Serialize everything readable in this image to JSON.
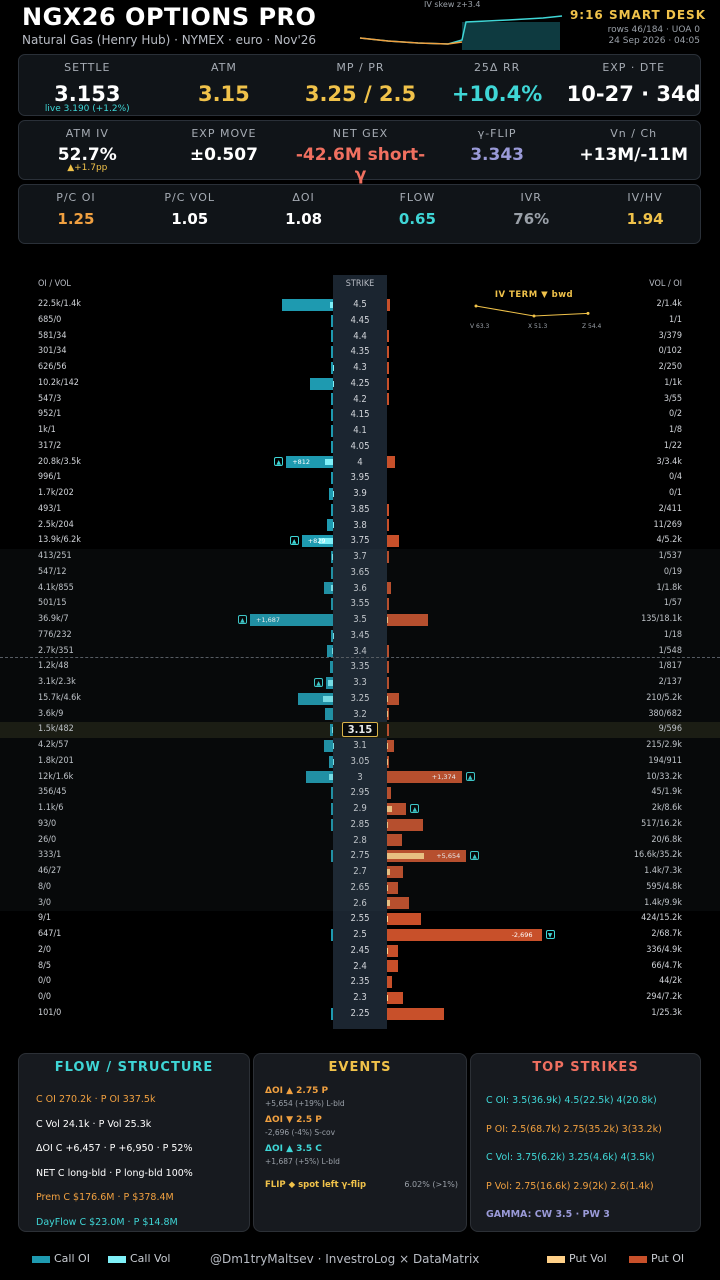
{
  "header": {
    "title": "NGX26 OPTIONS PRO",
    "subtitle": "Natural Gas (Henry Hub) · NYMEX · euro · Nov'26",
    "desk": "9:16 SMART DESK",
    "rows": "rows 46/184 · UOA 0",
    "datetime": "24 Sep 2026 · 04:05",
    "skew_label": "IV skew  z+3.4"
  },
  "kpi1": [
    {
      "label": "SETTLE",
      "value": "3.153",
      "sub": "live 3.190 (+1.2%)",
      "color": "#ffffff"
    },
    {
      "label": "ATM",
      "value": "3.15",
      "color": "#f0c24a"
    },
    {
      "label": "MP / PR",
      "value": "3.25 / 2.5",
      "color": "#f0c24a"
    },
    {
      "label": "25Δ RR",
      "value": "+10.4%",
      "color": "#3fd6d6"
    },
    {
      "label": "EXP · DTE",
      "value": "10-27 · 34d",
      "color": "#ffffff"
    }
  ],
  "kpi2": [
    {
      "label": "ATM IV",
      "value": "52.7%",
      "sub": "▲+1.7pp",
      "color": "#ffffff"
    },
    {
      "label": "EXP MOVE",
      "value": "±0.507",
      "color": "#ffffff"
    },
    {
      "label": "NET GEX",
      "value": "-42.6M short-γ",
      "color": "#f07060"
    },
    {
      "label": "γ-FLIP",
      "value": "3.343",
      "color": "#9a9ad8"
    },
    {
      "label": "Vn / Ch",
      "value": "+13M/-11M",
      "color": "#ffffff"
    }
  ],
  "kpi3": [
    {
      "label": "P/C OI",
      "value": "1.25",
      "color": "#f0a040"
    },
    {
      "label": "P/C VOL",
      "value": "1.05",
      "color": "#ffffff"
    },
    {
      "label": "ΔOI",
      "value": "1.08",
      "color": "#ffffff"
    },
    {
      "label": "FLOW",
      "value": "0.65",
      "color": "#3fd6d6"
    },
    {
      "label": "IVR",
      "value": "76%",
      "color": "#9aa0a8"
    },
    {
      "label": "IV/HV",
      "value": "1.94",
      "color": "#f0c24a"
    }
  ],
  "grid": {
    "left_header": "OI / VOL",
    "strike_header": "STRIKE",
    "right_header": "VOL / OI",
    "atm_strike": "3.15",
    "rows": [
      {
        "s": "4.5",
        "l": "22.5k/1.4k",
        "r": "2/1.4k",
        "coi": 22.5,
        "cvol": 1.4,
        "poi": 1.4,
        "pvol": 0
      },
      {
        "s": "4.45",
        "l": "685/0",
        "r": "1/1",
        "coi": 0.7,
        "cvol": 0,
        "poi": 0,
        "pvol": 0
      },
      {
        "s": "4.4",
        "l": "581/34",
        "r": "3/379",
        "coi": 0.6,
        "cvol": 0,
        "poi": 0.4,
        "pvol": 0
      },
      {
        "s": "4.35",
        "l": "301/34",
        "r": "0/102",
        "coi": 0.3,
        "cvol": 0,
        "poi": 0.1,
        "pvol": 0
      },
      {
        "s": "4.3",
        "l": "626/56",
        "r": "2/250",
        "coi": 0.6,
        "cvol": 0.1,
        "poi": 0.3,
        "pvol": 0
      },
      {
        "s": "4.25",
        "l": "10.2k/142",
        "r": "1/1k",
        "coi": 10.2,
        "cvol": 0.1,
        "poi": 1,
        "pvol": 0
      },
      {
        "s": "4.2",
        "l": "547/3",
        "r": "3/55",
        "coi": 0.5,
        "cvol": 0,
        "poi": 0.1,
        "pvol": 0
      },
      {
        "s": "4.15",
        "l": "952/1",
        "r": "0/2",
        "coi": 1,
        "cvol": 0,
        "poi": 0,
        "pvol": 0
      },
      {
        "s": "4.1",
        "l": "1k/1",
        "r": "1/8",
        "coi": 1,
        "cvol": 0,
        "poi": 0,
        "pvol": 0
      },
      {
        "s": "4.05",
        "l": "317/2",
        "r": "1/22",
        "coi": 0.3,
        "cvol": 0,
        "poi": 0,
        "pvol": 0
      },
      {
        "s": "4",
        "l": "20.8k/3.5k",
        "r": "3/3.4k",
        "coi": 20.8,
        "cvol": 3.5,
        "poi": 3.4,
        "pvol": 0,
        "tag": "+812",
        "tagside": "L",
        "arrow": "▲"
      },
      {
        "s": "3.95",
        "l": "996/1",
        "r": "0/4",
        "coi": 1,
        "cvol": 0,
        "poi": 0,
        "pvol": 0
      },
      {
        "s": "3.9",
        "l": "1.7k/202",
        "r": "0/1",
        "coi": 1.7,
        "cvol": 0.2,
        "poi": 0,
        "pvol": 0
      },
      {
        "s": "3.85",
        "l": "493/1",
        "r": "2/411",
        "coi": 0.5,
        "cvol": 0,
        "poi": 0.4,
        "pvol": 0
      },
      {
        "s": "3.8",
        "l": "2.5k/204",
        "r": "11/269",
        "coi": 2.5,
        "cvol": 0.2,
        "poi": 0.3,
        "pvol": 0
      },
      {
        "s": "3.75",
        "l": "13.9k/6.2k",
        "r": "4/5.2k",
        "coi": 13.9,
        "cvol": 6.2,
        "poi": 5.2,
        "pvol": 0,
        "tag": "+829",
        "tagside": "L",
        "arrow": "▲"
      },
      {
        "s": "3.7",
        "l": "413/251",
        "r": "1/537",
        "coi": 0.4,
        "cvol": 0.3,
        "poi": 0.5,
        "pvol": 0
      },
      {
        "s": "3.65",
        "l": "547/12",
        "r": "0/19",
        "coi": 0.5,
        "cvol": 0,
        "poi": 0,
        "pvol": 0
      },
      {
        "s": "3.6",
        "l": "4.1k/855",
        "r": "1/1.8k",
        "coi": 4.1,
        "cvol": 0.9,
        "poi": 1.8,
        "pvol": 0
      },
      {
        "s": "3.55",
        "l": "501/15",
        "r": "1/57",
        "coi": 0.5,
        "cvol": 0,
        "poi": 0.1,
        "pvol": 0
      },
      {
        "s": "3.5",
        "l": "36.9k/7",
        "r": "135/18.1k",
        "coi": 36.9,
        "cvol": 0,
        "poi": 18.1,
        "pvol": 0.1,
        "tag": "+1,687",
        "tagside": "L",
        "arrow": "▲"
      },
      {
        "s": "3.45",
        "l": "776/232",
        "r": "1/18",
        "coi": 0.8,
        "cvol": 0.2,
        "poi": 0,
        "pvol": 0
      },
      {
        "s": "3.4",
        "l": "2.7k/351",
        "r": "1/548",
        "coi": 2.7,
        "cvol": 0.4,
        "poi": 0.5,
        "pvol": 0
      },
      {
        "s": "3.35",
        "l": "1.2k/48",
        "r": "1/817",
        "coi": 1.2,
        "cvol": 0,
        "poi": 0.8,
        "pvol": 0
      },
      {
        "s": "3.3",
        "l": "3.1k/2.3k",
        "r": "2/137",
        "coi": 3.1,
        "cvol": 2.3,
        "poi": 0.1,
        "pvol": 0,
        "arrow": "▲",
        "tagside": "L"
      },
      {
        "s": "3.25",
        "l": "15.7k/4.6k",
        "r": "210/5.2k",
        "coi": 15.7,
        "cvol": 4.6,
        "poi": 5.2,
        "pvol": 0.2
      },
      {
        "s": "3.2",
        "l": "3.6k/9",
        "r": "380/682",
        "coi": 3.6,
        "cvol": 0,
        "poi": 0.7,
        "pvol": 0.4
      },
      {
        "s": "3.15",
        "l": "1.5k/482",
        "r": "9/596",
        "coi": 1.5,
        "cvol": 0.5,
        "poi": 0.6,
        "pvol": 0
      },
      {
        "s": "3.1",
        "l": "4.2k/57",
        "r": "215/2.9k",
        "coi": 4.2,
        "cvol": 0.1,
        "poi": 2.9,
        "pvol": 0.2
      },
      {
        "s": "3.05",
        "l": "1.8k/201",
        "r": "194/911",
        "coi": 1.8,
        "cvol": 0.2,
        "poi": 0.9,
        "pvol": 0.2
      },
      {
        "s": "3",
        "l": "12k/1.6k",
        "r": "10/33.2k",
        "coi": 12,
        "cvol": 1.6,
        "poi": 33.2,
        "pvol": 0,
        "tag": "+1,374",
        "tagside": "R",
        "arrow": "▲"
      },
      {
        "s": "2.95",
        "l": "356/45",
        "r": "45/1.9k",
        "coi": 0.4,
        "cvol": 0,
        "poi": 1.9,
        "pvol": 0
      },
      {
        "s": "2.9",
        "l": "1.1k/6",
        "r": "2k/8.6k",
        "coi": 1.1,
        "cvol": 0,
        "poi": 8.6,
        "pvol": 2,
        "arrow": "▲",
        "tagside": "R"
      },
      {
        "s": "2.85",
        "l": "93/0",
        "r": "517/16.2k",
        "coi": 0.1,
        "cvol": 0,
        "poi": 16.2,
        "pvol": 0.5
      },
      {
        "s": "2.8",
        "l": "26/0",
        "r": "20/6.8k",
        "coi": 0,
        "cvol": 0,
        "poi": 6.8,
        "pvol": 0
      },
      {
        "s": "2.75",
        "l": "333/1",
        "r": "16.6k/35.2k",
        "coi": 0.3,
        "cvol": 0,
        "poi": 35.2,
        "pvol": 16.6,
        "tag": "+5,654",
        "tagside": "R",
        "arrow": "▲"
      },
      {
        "s": "2.7",
        "l": "46/27",
        "r": "1.4k/7.3k",
        "coi": 0,
        "cvol": 0,
        "poi": 7.3,
        "pvol": 1.4
      },
      {
        "s": "2.65",
        "l": "8/0",
        "r": "595/4.8k",
        "coi": 0,
        "cvol": 0,
        "poi": 4.8,
        "pvol": 0.6
      },
      {
        "s": "2.6",
        "l": "3/0",
        "r": "1.4k/9.9k",
        "coi": 0,
        "cvol": 0,
        "poi": 9.9,
        "pvol": 1.4
      },
      {
        "s": "2.55",
        "l": "9/1",
        "r": "424/15.2k",
        "coi": 0,
        "cvol": 0,
        "poi": 15.2,
        "pvol": 0.4
      },
      {
        "s": "2.5",
        "l": "647/1",
        "r": "2/68.7k",
        "coi": 0.6,
        "cvol": 0,
        "poi": 68.7,
        "pvol": 0,
        "tag": "-2,696",
        "tagside": "R",
        "arrow": "▼"
      },
      {
        "s": "2.45",
        "l": "2/0",
        "r": "336/4.9k",
        "coi": 0,
        "cvol": 0,
        "poi": 4.9,
        "pvol": 0.3
      },
      {
        "s": "2.4",
        "l": "8/5",
        "r": "66/4.7k",
        "coi": 0,
        "cvol": 0,
        "poi": 4.7,
        "pvol": 0
      },
      {
        "s": "2.35",
        "l": "0/0",
        "r": "44/2k",
        "coi": 0,
        "cvol": 0,
        "poi": 2,
        "pvol": 0
      },
      {
        "s": "2.3",
        "l": "0/0",
        "r": "294/7.2k",
        "coi": 0,
        "cvol": 0,
        "poi": 7.2,
        "pvol": 0.3
      },
      {
        "s": "2.25",
        "l": "101/0",
        "r": "1/25.3k",
        "coi": 0.1,
        "cvol": 0,
        "poi": 25.3,
        "pvol": 0
      }
    ]
  },
  "ivterm": {
    "title": "IV TERM  ▼ bwd",
    "points": [
      {
        "label": "V 63.3",
        "iv": 63.3
      },
      {
        "label": "X 51.3",
        "iv": 51.3
      },
      {
        "label": "Z 54.4",
        "iv": 54.4
      }
    ]
  },
  "flow": {
    "title": "FLOW / STRUCTURE",
    "lines": [
      {
        "t": "C OI 270.2k  ·  P OI 337.5k",
        "c": "#f0a040"
      },
      {
        "t": "C Vol 24.1k  ·  P Vol 25.3k",
        "c": "#ffffff"
      },
      {
        "t": "ΔOI C +6,457  ·  P +6,950  ·  P 52%",
        "c": "#ffffff"
      },
      {
        "t": "NET  C long-bld  ·  P long-bld 100%",
        "c": "#ffffff"
      },
      {
        "t": "Prem  C $176.6M  ·  P $378.4M",
        "c": "#f0a040"
      },
      {
        "t": "DayFlow  C $23.0M  ·  P $14.8M",
        "c": "#3fd6d6"
      }
    ]
  },
  "events": {
    "title": "EVENTS",
    "items": [
      {
        "h": "ΔOI ▲ 2.75 P",
        "hc": "#f0a040",
        "d": "+5,654 (+19%)  L-bld"
      },
      {
        "h": "ΔOI ▼ 2.5 P",
        "hc": "#f0a040",
        "d": "-2,696 (-4%)  S-cov"
      },
      {
        "h": "ΔOI ▲ 3.5 C",
        "hc": "#3fd6d6",
        "d": "+1,687 (+5%)  L-bld"
      }
    ],
    "flip": "FLIP ◆ spot left γ-flip",
    "flip_val": "6.02% (>1%)"
  },
  "top": {
    "title": "TOP STRIKES",
    "lines": [
      {
        "t": "C OI: 3.5(36.9k)  4.5(22.5k)  4(20.8k)",
        "c": "#3fd6d6"
      },
      {
        "t": "P OI: 2.5(68.7k)  2.75(35.2k)  3(33.2k)",
        "c": "#f0a040"
      },
      {
        "t": "C Vol: 3.75(6.2k)  3.25(4.6k)  4(3.5k)",
        "c": "#3fd6d6"
      },
      {
        "t": "P Vol: 2.75(16.6k)  2.9(2k)  2.6(1.4k)",
        "c": "#f0a040"
      },
      {
        "t": "GAMMA: CW 3.5 · PW 3",
        "c": "#9a9ad8"
      }
    ]
  },
  "footer": {
    "call_oi": "Call OI",
    "call_vol": "Call Vol",
    "credit": "@Dm1tryMaltsev  ·  InvestroLog × DataMatrix",
    "put_vol": "Put Vol",
    "put_oi": "Put OI"
  },
  "colors": {
    "call_oi": "#1e9ab0",
    "call_vol": "#7ff0f8",
    "put_oi": "#c8502a",
    "put_vol": "#ffd088",
    "accent": "#f0c24a"
  }
}
